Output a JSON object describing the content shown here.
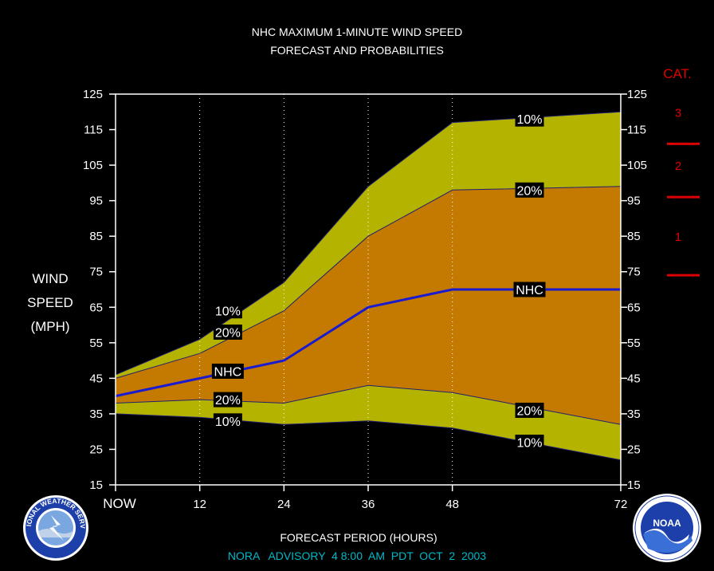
{
  "chart_data": {
    "type": "area",
    "title_line1": "NHC MAXIMUM 1-MINUTE WIND SPEED",
    "title_line2": "FORECAST AND PROBABILITIES",
    "ylabel_lines": [
      "WIND",
      "SPEED",
      "(MPH)"
    ],
    "xlabel": "FORECAST PERIOD (HOURS)",
    "footer": "NORA   ADVISORY  4 8:00  AM  PDT  OCT  2  2003",
    "ylim": [
      15,
      125
    ],
    "y_ticks": [
      125,
      115,
      105,
      95,
      85,
      75,
      65,
      55,
      45,
      35,
      25,
      15
    ],
    "xlim": [
      0,
      72
    ],
    "x_ticks": [
      {
        "x": 0,
        "label": "NOW"
      },
      {
        "x": 12,
        "label": "12"
      },
      {
        "x": 24,
        "label": "24"
      },
      {
        "x": 36,
        "label": "36"
      },
      {
        "x": 48,
        "label": "48"
      },
      {
        "x": 72,
        "label": "72"
      }
    ],
    "x": [
      0,
      12,
      24,
      36,
      48,
      72
    ],
    "series": [
      {
        "name": "10%",
        "role": "upper_10",
        "values": [
          46,
          56,
          72,
          99,
          117,
          120
        ]
      },
      {
        "name": "20%",
        "role": "upper_20",
        "values": [
          45,
          52,
          64,
          85,
          98,
          99
        ]
      },
      {
        "name": "NHC",
        "role": "nhc",
        "values": [
          40,
          45,
          50,
          65,
          70,
          70
        ]
      },
      {
        "name": "20%",
        "role": "lower_20",
        "values": [
          38,
          39,
          38,
          43,
          41,
          32
        ]
      },
      {
        "name": "10%",
        "role": "lower_10",
        "values": [
          35,
          34,
          32,
          33,
          31,
          22
        ]
      }
    ],
    "series_labels": [
      {
        "text": "10%",
        "x": 16,
        "y": 64
      },
      {
        "text": "20%",
        "x": 16,
        "y": 58
      },
      {
        "text": "NHC",
        "x": 16,
        "y": 47
      },
      {
        "text": "20%",
        "x": 16,
        "y": 39
      },
      {
        "text": "10%",
        "x": 16,
        "y": 33
      },
      {
        "text": "10%",
        "x": 59,
        "y": 118
      },
      {
        "text": "20%",
        "x": 59,
        "y": 98
      },
      {
        "text": "NHC",
        "x": 59,
        "y": 70
      },
      {
        "text": "20%",
        "x": 59,
        "y": 36
      },
      {
        "text": "10%",
        "x": 59,
        "y": 27
      }
    ],
    "category_scale": {
      "title": "CAT.",
      "labels": [
        {
          "text": "3",
          "y": 120
        },
        {
          "text": "2",
          "y": 105
        },
        {
          "text": "1",
          "y": 85
        }
      ],
      "boundaries": [
        111,
        96,
        74
      ]
    },
    "grid": "vertical-dotted",
    "colors": {
      "outer_band": "#b4b400",
      "inner_band": "#c47a00",
      "nhc_line": "#1a1ad0",
      "text": "#ffffff",
      "category": "#dd0000",
      "footer": "#00b8c8"
    }
  },
  "logos": {
    "nws": "NATIONAL WEATHER SERVICE",
    "noaa": "NOAA"
  }
}
